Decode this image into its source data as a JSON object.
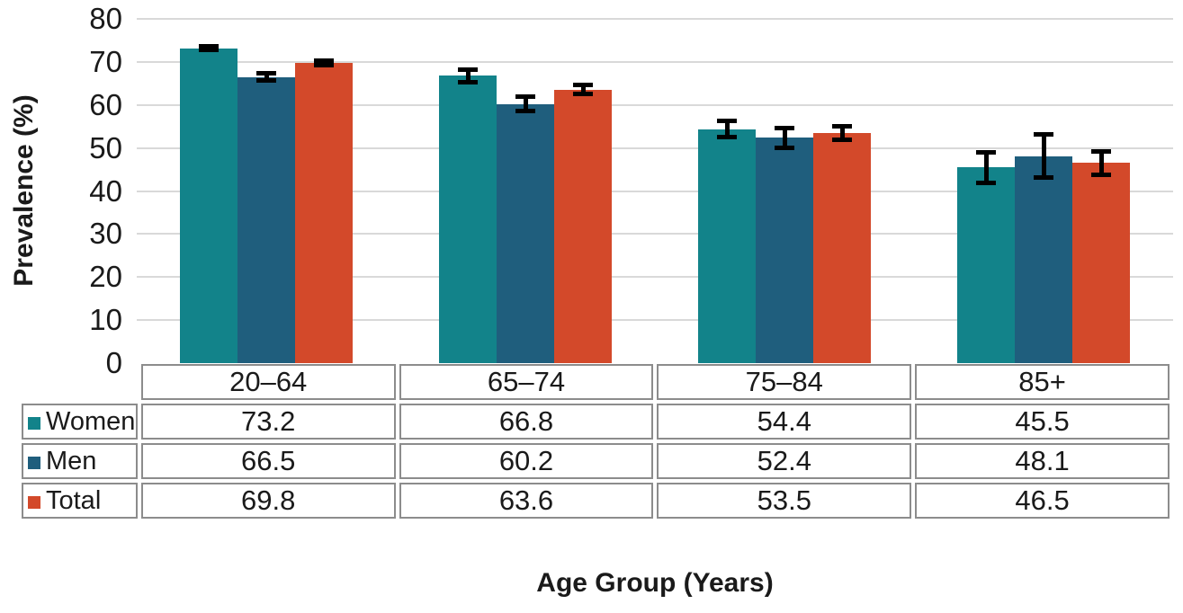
{
  "chart_data": {
    "type": "bar",
    "title": "",
    "xlabel": "Age Group (Years)",
    "ylabel": "Prevalence (%)",
    "ylim": [
      0,
      80
    ],
    "yticks": [
      0,
      10,
      20,
      30,
      40,
      50,
      60,
      70,
      80
    ],
    "grid": true,
    "legend_position": "table-left",
    "categories": [
      "20–64",
      "65–74",
      "75–84",
      "85+"
    ],
    "series": [
      {
        "name": "Women",
        "color": "#12838a",
        "values": [
          73.2,
          66.8,
          54.4,
          45.5
        ],
        "error": [
          0.9,
          2.0,
          2.4,
          4.1
        ]
      },
      {
        "name": "Men",
        "color": "#1f5e7d",
        "values": [
          66.5,
          60.2,
          52.4,
          48.1
        ],
        "error": [
          1.4,
          2.2,
          2.8,
          5.5
        ]
      },
      {
        "name": "Total",
        "color": "#d3492a",
        "values": [
          69.8,
          63.6,
          53.5,
          46.5
        ],
        "error": [
          1.1,
          1.5,
          2.1,
          3.3
        ]
      }
    ]
  },
  "colors": {
    "gridline": "#d9d9d9",
    "table_border": "#8c8c8c",
    "error_bar": "#000000",
    "text": "#1a1a1a"
  }
}
